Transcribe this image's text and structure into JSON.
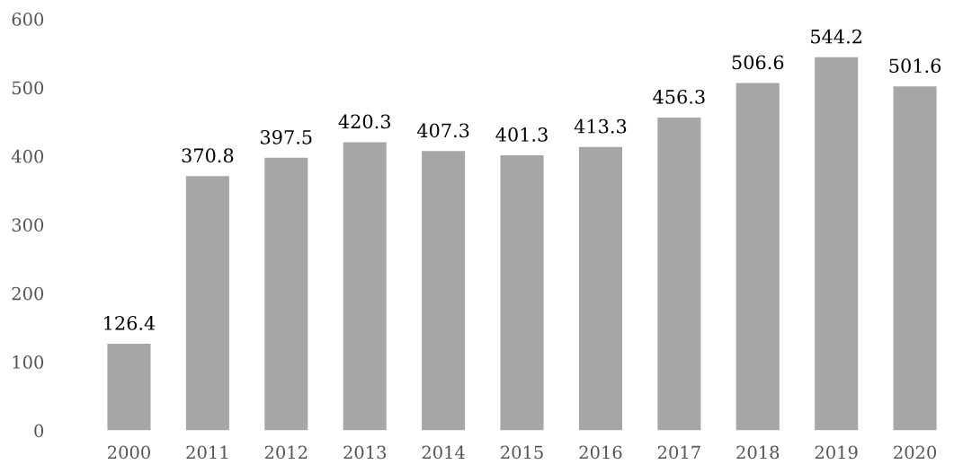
{
  "chart_data": {
    "type": "bar",
    "categories": [
      "2000",
      "2011",
      "2012",
      "2013",
      "2014",
      "2015",
      "2016",
      "2017",
      "2018",
      "2019",
      "2020"
    ],
    "values": [
      126.4,
      370.8,
      397.5,
      420.3,
      407.3,
      401.3,
      413.3,
      456.3,
      506.6,
      544.2,
      501.6
    ],
    "color": "#a6a6a6",
    "ylim": [
      0,
      600
    ],
    "yticks": [
      0,
      100,
      200,
      300,
      400,
      500,
      600
    ],
    "data_labels": true,
    "grid": false,
    "legend": false
  }
}
